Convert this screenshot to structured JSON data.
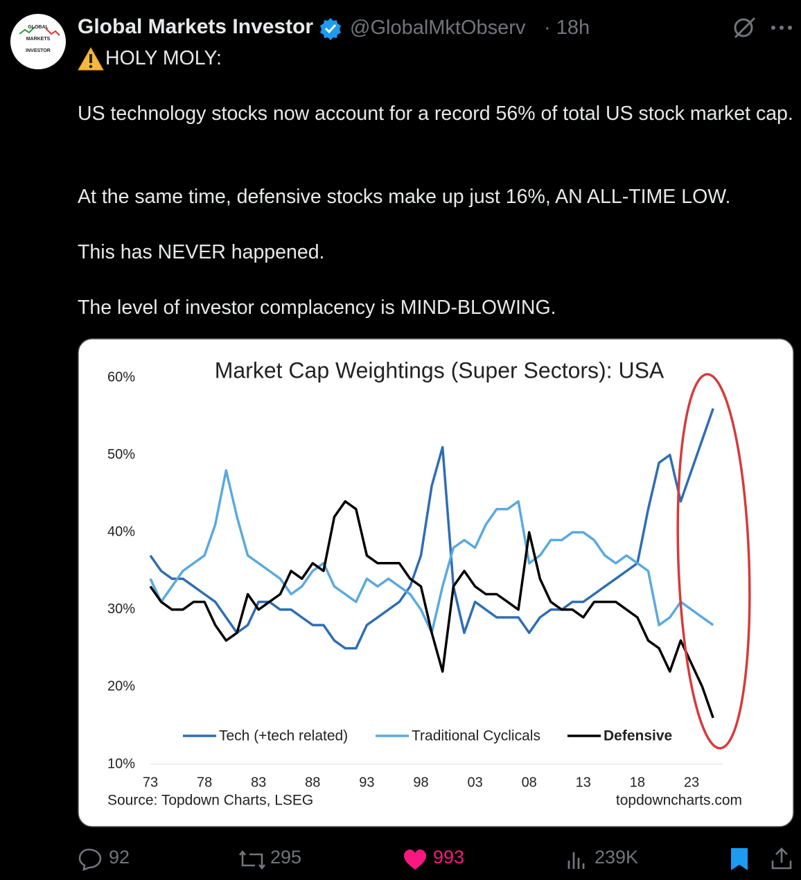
{
  "tweet": {
    "avatar_lines": [
      "GLOBAL",
      "MARKETS",
      "INVESTOR"
    ],
    "name": "Global Markets Investor",
    "handle": "@GlobalMktObserv",
    "time": "· 18h",
    "paragraphs": [
      "HOLY MOLY:",
      "US technology stocks now account for a record 56% of total US stock market cap.",
      "At the same time, defensive stocks make up just 16%, AN ALL-TIME LOW.",
      "This has NEVER happened.",
      "The level of investor complacency is MIND-BLOWING."
    ],
    "stats": {
      "replies": "92",
      "reposts": "295",
      "likes": "993",
      "views": "239K"
    }
  },
  "chart_data": {
    "type": "line",
    "title": "Market Cap Weightings (Super Sectors): USA",
    "source": "Source: Topdown Charts, LSEG",
    "credit": "topdowncharts.com",
    "x": [
      1973,
      1974,
      1975,
      1976,
      1977,
      1978,
      1979,
      1980,
      1981,
      1982,
      1983,
      1984,
      1985,
      1986,
      1987,
      1988,
      1989,
      1990,
      1991,
      1992,
      1993,
      1994,
      1995,
      1996,
      1997,
      1998,
      1999,
      2000,
      2001,
      2002,
      2003,
      2004,
      2005,
      2006,
      2007,
      2008,
      2009,
      2010,
      2011,
      2012,
      2013,
      2014,
      2015,
      2016,
      2017,
      2018,
      2019,
      2020,
      2021,
      2022,
      2023,
      2024,
      2025
    ],
    "xlim": [
      1973,
      2025.9
    ],
    "xticks": [
      {
        "value": 1973,
        "label": "73"
      },
      {
        "value": 1978,
        "label": "78"
      },
      {
        "value": 1983,
        "label": "83"
      },
      {
        "value": 1988,
        "label": "88"
      },
      {
        "value": 1993,
        "label": "93"
      },
      {
        "value": 1998,
        "label": "98"
      },
      {
        "value": 2003,
        "label": "03"
      },
      {
        "value": 2008,
        "label": "08"
      },
      {
        "value": 2013,
        "label": "13"
      },
      {
        "value": 2018,
        "label": "18"
      },
      {
        "value": 2023,
        "label": "23"
      }
    ],
    "ylim": [
      10,
      60
    ],
    "yticks": [
      {
        "value": 10,
        "label": "10%"
      },
      {
        "value": 20,
        "label": "20%"
      },
      {
        "value": 30,
        "label": "30%"
      },
      {
        "value": 40,
        "label": "40%"
      },
      {
        "value": 50,
        "label": "50%"
      },
      {
        "value": 60,
        "label": "60%"
      }
    ],
    "series": [
      {
        "name": "Tech (+tech related)",
        "color": "#2e6db5",
        "values": [
          37,
          35,
          34,
          34,
          33,
          32,
          31,
          29,
          27,
          28,
          31,
          31,
          30,
          30,
          29,
          28,
          28,
          26,
          25,
          25,
          28,
          29,
          30,
          31,
          33,
          37,
          46,
          51,
          33,
          27,
          31,
          30,
          29,
          29,
          29,
          27,
          29,
          30,
          30,
          31,
          31,
          32,
          33,
          34,
          35,
          36,
          43,
          49,
          50,
          44,
          48,
          52,
          56
        ]
      },
      {
        "name": "Traditional Cyclicals",
        "color": "#5aa9df",
        "values": [
          34,
          31,
          33,
          35,
          36,
          37,
          41,
          48,
          42,
          37,
          36,
          35,
          34,
          32,
          33,
          35,
          36,
          33,
          32,
          31,
          34,
          33,
          34,
          33,
          32,
          30,
          27,
          33,
          38,
          39,
          38,
          41,
          43,
          43,
          44,
          36,
          37,
          39,
          39,
          40,
          40,
          39,
          37,
          36,
          37,
          36,
          35,
          28,
          29,
          31,
          30,
          29,
          28
        ]
      },
      {
        "name": "Defensive",
        "color": "#000000",
        "values": [
          33,
          31,
          30,
          30,
          31,
          31,
          28,
          26,
          27,
          32,
          30,
          31,
          32,
          35,
          34,
          36,
          35,
          42,
          44,
          43,
          37,
          36,
          36,
          36,
          34,
          33,
          27,
          22,
          33,
          35,
          33,
          32,
          32,
          31,
          30,
          40,
          34,
          31,
          30,
          30,
          29,
          31,
          31,
          31,
          30,
          29,
          26,
          25,
          22,
          26,
          23,
          20,
          16
        ]
      }
    ]
  }
}
